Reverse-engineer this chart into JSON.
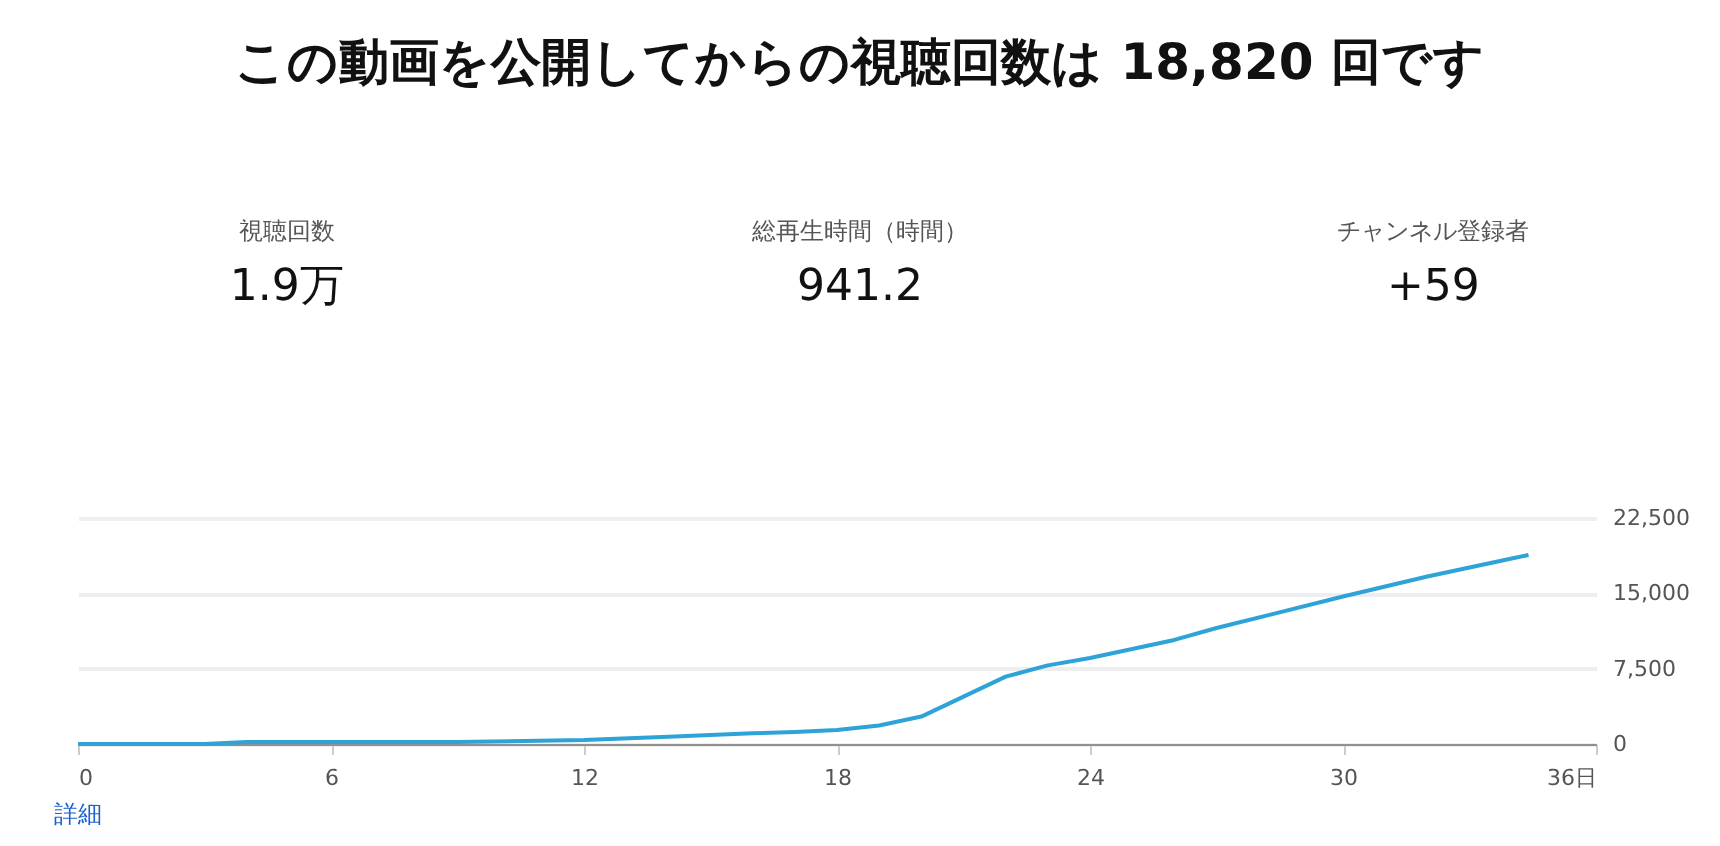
{
  "chart_data": {
    "type": "line",
    "title": "この動画を公開してからの視聴回数は 18,820 回です",
    "annotations": [
      "視聴回数",
      "1.9万",
      "総再生時間（時間）",
      "941.2",
      "チャンネル登録者",
      "+59",
      "詳細"
    ],
    "x": [
      0,
      3,
      4,
      9,
      12,
      14,
      16,
      17,
      18,
      19,
      20,
      21,
      22,
      23,
      24,
      26,
      27,
      30,
      32,
      34,
      34.4
    ],
    "series": [
      {
        "color": "#2ea3d8",
        "values": [
          0,
          0,
          200,
          200,
          400,
          730,
          1060,
          1200,
          1390,
          1850,
          2730,
          4720,
          6710,
          7830,
          8560,
          10360,
          11550,
          14680,
          16670,
          18470,
          18820
        ]
      }
    ],
    "xlim": [
      0,
      36
    ],
    "xticks": [
      0,
      6,
      12,
      18,
      24,
      30,
      {
        "value": 36,
        "label": "36日"
      }
    ],
    "ylim": [
      0,
      22500
    ],
    "yticks": [
      0,
      {
        "value": 7500,
        "label": "7,500"
      },
      {
        "value": 15000,
        "label": "15,000"
      },
      {
        "value": 22500,
        "label": "22,500"
      }
    ],
    "grid": "y",
    "marker": "none",
    "line_style": "solid"
  }
}
